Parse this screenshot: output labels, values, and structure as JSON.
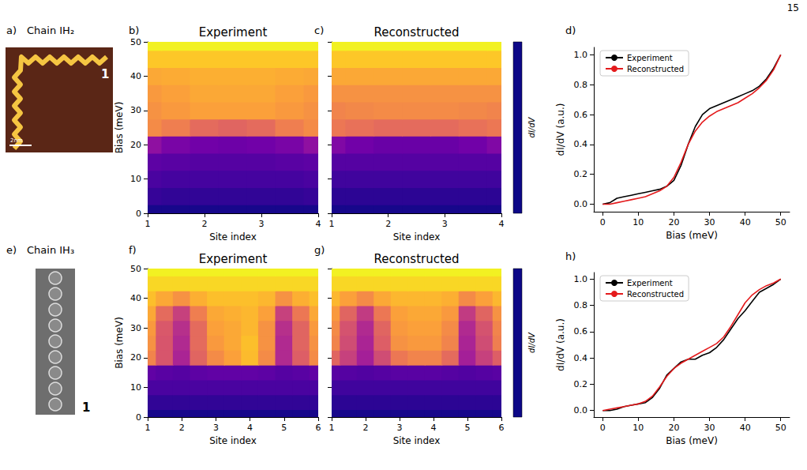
{
  "page_number": "15",
  "images": [
    {
      "panel": "a)",
      "title": "Chain IH₂",
      "label": "1",
      "scale_bar": "2nm"
    },
    {
      "panel": "e)",
      "title": "Chain IH₃",
      "label": "1"
    }
  ],
  "chart_data": [
    {
      "panel": "b)",
      "type": "heatmap",
      "title": "Experiment",
      "x": [
        1,
        1.5,
        2,
        2.5,
        3,
        3.5,
        4
      ],
      "y": [
        0,
        5,
        10,
        15,
        20,
        25,
        30,
        35,
        40,
        45,
        50
      ],
      "z": [
        [
          0.02,
          0.02,
          0.02,
          0.02,
          0.02,
          0.02,
          0.02
        ],
        [
          0.08,
          0.07,
          0.07,
          0.07,
          0.07,
          0.07,
          0.08
        ],
        [
          0.12,
          0.11,
          0.11,
          0.11,
          0.11,
          0.11,
          0.12
        ],
        [
          0.17,
          0.16,
          0.15,
          0.15,
          0.15,
          0.16,
          0.17
        ],
        [
          0.3,
          0.24,
          0.22,
          0.21,
          0.22,
          0.24,
          0.3
        ],
        [
          0.72,
          0.68,
          0.62,
          0.6,
          0.62,
          0.68,
          0.72
        ],
        [
          0.74,
          0.76,
          0.78,
          0.78,
          0.78,
          0.76,
          0.74
        ],
        [
          0.76,
          0.78,
          0.8,
          0.8,
          0.8,
          0.78,
          0.76
        ],
        [
          0.8,
          0.81,
          0.82,
          0.82,
          0.82,
          0.81,
          0.8
        ],
        [
          0.88,
          0.88,
          0.88,
          0.88,
          0.88,
          0.88,
          0.88
        ],
        [
          0.98,
          0.98,
          0.98,
          0.98,
          0.98,
          0.98,
          0.98
        ]
      ],
      "color_range": [
        0,
        1
      ],
      "xlim": [
        1,
        4
      ],
      "ylim": [
        0,
        50
      ],
      "xticks": [
        1,
        2,
        3,
        4
      ],
      "yticks": [
        0,
        10,
        20,
        30,
        40,
        50
      ],
      "xlabel": "Site index",
      "ylabel": "Bias (meV)"
    },
    {
      "panel": "c)",
      "type": "heatmap",
      "title": "Reconstructed",
      "x": [
        1,
        1.5,
        2,
        2.5,
        3,
        3.5,
        4
      ],
      "y": [
        0,
        5,
        10,
        15,
        20,
        25,
        30,
        35,
        40,
        45,
        50
      ],
      "z": [
        [
          0.02,
          0.02,
          0.02,
          0.02,
          0.02,
          0.02,
          0.02
        ],
        [
          0.06,
          0.06,
          0.06,
          0.06,
          0.06,
          0.06,
          0.06
        ],
        [
          0.1,
          0.1,
          0.1,
          0.1,
          0.1,
          0.1,
          0.1
        ],
        [
          0.15,
          0.15,
          0.15,
          0.15,
          0.15,
          0.15,
          0.15
        ],
        [
          0.26,
          0.22,
          0.2,
          0.2,
          0.2,
          0.22,
          0.26
        ],
        [
          0.66,
          0.64,
          0.62,
          0.62,
          0.62,
          0.64,
          0.66
        ],
        [
          0.7,
          0.71,
          0.72,
          0.72,
          0.72,
          0.71,
          0.7
        ],
        [
          0.74,
          0.74,
          0.74,
          0.74,
          0.74,
          0.74,
          0.74
        ],
        [
          0.8,
          0.8,
          0.8,
          0.8,
          0.8,
          0.8,
          0.8
        ],
        [
          0.88,
          0.88,
          0.88,
          0.88,
          0.88,
          0.88,
          0.88
        ],
        [
          0.98,
          0.98,
          0.98,
          0.98,
          0.98,
          0.98,
          0.98
        ]
      ],
      "color_range": [
        0,
        1
      ],
      "color_label": "dI/dV",
      "xlim": [
        1,
        4
      ],
      "ylim": [
        0,
        50
      ],
      "xticks": [
        1,
        2,
        3,
        4
      ],
      "yticks": [
        0,
        10,
        20,
        30,
        40,
        50
      ],
      "xlabel": "Site index",
      "tick_labels": "x"
    },
    {
      "panel": "d)",
      "type": "line",
      "x": [
        0,
        2,
        4,
        6,
        8,
        10,
        12,
        14,
        16,
        18,
        20,
        22,
        24,
        26,
        28,
        30,
        32,
        34,
        36,
        38,
        40,
        42,
        44,
        46,
        48,
        50
      ],
      "series": [
        {
          "name": "Experiment",
          "color": "#000000",
          "values": [
            0.0,
            0.01,
            0.04,
            0.05,
            0.06,
            0.07,
            0.08,
            0.09,
            0.1,
            0.12,
            0.16,
            0.26,
            0.4,
            0.52,
            0.6,
            0.64,
            0.66,
            0.68,
            0.7,
            0.72,
            0.74,
            0.76,
            0.79,
            0.84,
            0.91,
            1.0
          ]
        },
        {
          "name": "Reconstructed",
          "color": "#e41a1c",
          "values": [
            0.0,
            0.0,
            0.01,
            0.02,
            0.03,
            0.04,
            0.05,
            0.07,
            0.09,
            0.12,
            0.18,
            0.28,
            0.4,
            0.49,
            0.55,
            0.59,
            0.62,
            0.64,
            0.66,
            0.68,
            0.71,
            0.74,
            0.78,
            0.83,
            0.9,
            1.0
          ]
        }
      ],
      "xlim": [
        -2.5,
        52.5
      ],
      "ylim": [
        -0.05,
        1.05
      ],
      "xticks": [
        0,
        10,
        20,
        30,
        40,
        50
      ],
      "yticks": [
        {
          "value": 0,
          "label": "0.0"
        },
        0.2,
        0.4,
        0.6,
        0.8,
        {
          "value": 1,
          "label": "1.0"
        }
      ],
      "xlabel": "Bias (meV)",
      "ylabel": "dI/dV (a.u.)",
      "legend": "upper left"
    },
    {
      "panel": "f)",
      "type": "heatmap",
      "title": "Experiment",
      "x": [
        1,
        1.5,
        2,
        2.5,
        3,
        3.5,
        4,
        4.5,
        5,
        5.5,
        6
      ],
      "y": [
        0,
        5,
        10,
        15,
        20,
        25,
        30,
        35,
        40,
        45,
        50
      ],
      "z": [
        [
          0.02,
          0.02,
          0.02,
          0.02,
          0.02,
          0.02,
          0.02,
          0.02,
          0.02,
          0.02,
          0.02
        ],
        [
          0.07,
          0.07,
          0.07,
          0.07,
          0.07,
          0.07,
          0.07,
          0.07,
          0.07,
          0.07,
          0.07
        ],
        [
          0.12,
          0.12,
          0.12,
          0.12,
          0.12,
          0.12,
          0.12,
          0.12,
          0.12,
          0.12,
          0.12
        ],
        [
          0.18,
          0.16,
          0.15,
          0.17,
          0.18,
          0.18,
          0.18,
          0.17,
          0.15,
          0.16,
          0.18
        ],
        [
          0.7,
          0.55,
          0.38,
          0.6,
          0.72,
          0.78,
          0.85,
          0.72,
          0.4,
          0.58,
          0.72
        ],
        [
          0.74,
          0.55,
          0.4,
          0.62,
          0.76,
          0.8,
          0.86,
          0.74,
          0.4,
          0.6,
          0.74
        ],
        [
          0.76,
          0.56,
          0.42,
          0.62,
          0.78,
          0.8,
          0.84,
          0.74,
          0.42,
          0.6,
          0.76
        ],
        [
          0.8,
          0.62,
          0.48,
          0.68,
          0.8,
          0.82,
          0.84,
          0.78,
          0.48,
          0.66,
          0.8
        ],
        [
          0.86,
          0.8,
          0.74,
          0.82,
          0.86,
          0.86,
          0.86,
          0.84,
          0.74,
          0.82,
          0.86
        ],
        [
          0.92,
          0.92,
          0.92,
          0.92,
          0.92,
          0.92,
          0.92,
          0.92,
          0.92,
          0.92,
          0.92
        ],
        [
          0.98,
          0.98,
          0.98,
          0.98,
          0.98,
          0.98,
          0.98,
          0.98,
          0.98,
          0.98,
          0.98
        ]
      ],
      "color_range": [
        0,
        1
      ],
      "xlim": [
        1,
        6
      ],
      "ylim": [
        0,
        50
      ],
      "xticks": [
        1,
        2,
        3,
        4,
        5,
        6
      ],
      "yticks": [
        0,
        10,
        20,
        30,
        40,
        50
      ],
      "xlabel": "Site index",
      "ylabel": "Bias (meV)"
    },
    {
      "panel": "g)",
      "type": "heatmap",
      "title": "Reconstructed",
      "x": [
        1,
        1.5,
        2,
        2.5,
        3,
        3.5,
        4,
        4.5,
        5,
        5.5,
        6
      ],
      "y": [
        0,
        5,
        10,
        15,
        20,
        25,
        30,
        35,
        40,
        45,
        50
      ],
      "z": [
        [
          0.02,
          0.02,
          0.02,
          0.02,
          0.02,
          0.02,
          0.02,
          0.02,
          0.02,
          0.02,
          0.02
        ],
        [
          0.06,
          0.06,
          0.06,
          0.06,
          0.06,
          0.06,
          0.06,
          0.06,
          0.06,
          0.06,
          0.06
        ],
        [
          0.1,
          0.1,
          0.1,
          0.1,
          0.1,
          0.1,
          0.1,
          0.1,
          0.1,
          0.1,
          0.1
        ],
        [
          0.16,
          0.15,
          0.14,
          0.15,
          0.16,
          0.16,
          0.16,
          0.15,
          0.14,
          0.15,
          0.16
        ],
        [
          0.6,
          0.48,
          0.36,
          0.52,
          0.66,
          0.7,
          0.7,
          0.62,
          0.36,
          0.48,
          0.58
        ],
        [
          0.7,
          0.52,
          0.38,
          0.58,
          0.74,
          0.76,
          0.76,
          0.7,
          0.38,
          0.52,
          0.68
        ],
        [
          0.72,
          0.54,
          0.4,
          0.6,
          0.76,
          0.78,
          0.78,
          0.72,
          0.4,
          0.54,
          0.7
        ],
        [
          0.76,
          0.6,
          0.46,
          0.66,
          0.78,
          0.8,
          0.8,
          0.76,
          0.46,
          0.6,
          0.74
        ],
        [
          0.84,
          0.78,
          0.72,
          0.8,
          0.84,
          0.84,
          0.84,
          0.82,
          0.72,
          0.78,
          0.84
        ],
        [
          0.92,
          0.92,
          0.92,
          0.92,
          0.92,
          0.92,
          0.92,
          0.92,
          0.92,
          0.92,
          0.92
        ],
        [
          0.98,
          0.98,
          0.98,
          0.98,
          0.98,
          0.98,
          0.98,
          0.98,
          0.98,
          0.98,
          0.98
        ]
      ],
      "color_range": [
        0,
        1
      ],
      "color_label": "dI/dV",
      "xlim": [
        1,
        6
      ],
      "ylim": [
        0,
        50
      ],
      "xticks": [
        1,
        2,
        3,
        4,
        5,
        6
      ],
      "yticks": [
        0,
        10,
        20,
        30,
        40,
        50
      ],
      "xlabel": "Site index",
      "tick_labels": "x"
    },
    {
      "panel": "h)",
      "type": "line",
      "x": [
        0,
        2,
        4,
        6,
        8,
        10,
        12,
        14,
        16,
        18,
        20,
        22,
        24,
        26,
        28,
        30,
        32,
        34,
        36,
        38,
        40,
        42,
        44,
        46,
        48,
        50
      ],
      "series": [
        {
          "name": "Experiment",
          "color": "#000000",
          "values": [
            0.0,
            0.0,
            0.01,
            0.03,
            0.04,
            0.05,
            0.06,
            0.1,
            0.17,
            0.27,
            0.32,
            0.37,
            0.39,
            0.39,
            0.42,
            0.44,
            0.48,
            0.54,
            0.62,
            0.7,
            0.76,
            0.83,
            0.9,
            0.93,
            0.96,
            1.0
          ]
        },
        {
          "name": "Reconstructed",
          "color": "#e41a1c",
          "values": [
            0.0,
            0.01,
            0.02,
            0.03,
            0.04,
            0.05,
            0.07,
            0.11,
            0.18,
            0.26,
            0.32,
            0.36,
            0.39,
            0.42,
            0.45,
            0.48,
            0.51,
            0.56,
            0.64,
            0.73,
            0.82,
            0.88,
            0.92,
            0.95,
            0.97,
            1.0
          ]
        }
      ],
      "xlim": [
        -2.5,
        52.5
      ],
      "ylim": [
        -0.05,
        1.05
      ],
      "xticks": [
        0,
        10,
        20,
        30,
        40,
        50
      ],
      "yticks": [
        {
          "value": 0,
          "label": "0.0"
        },
        0.2,
        0.4,
        0.6,
        0.8,
        {
          "value": 1,
          "label": "1.0"
        }
      ],
      "xlabel": "Bias (meV)",
      "ylabel": "dI/dV (a.u.)",
      "legend": "upper left"
    }
  ]
}
